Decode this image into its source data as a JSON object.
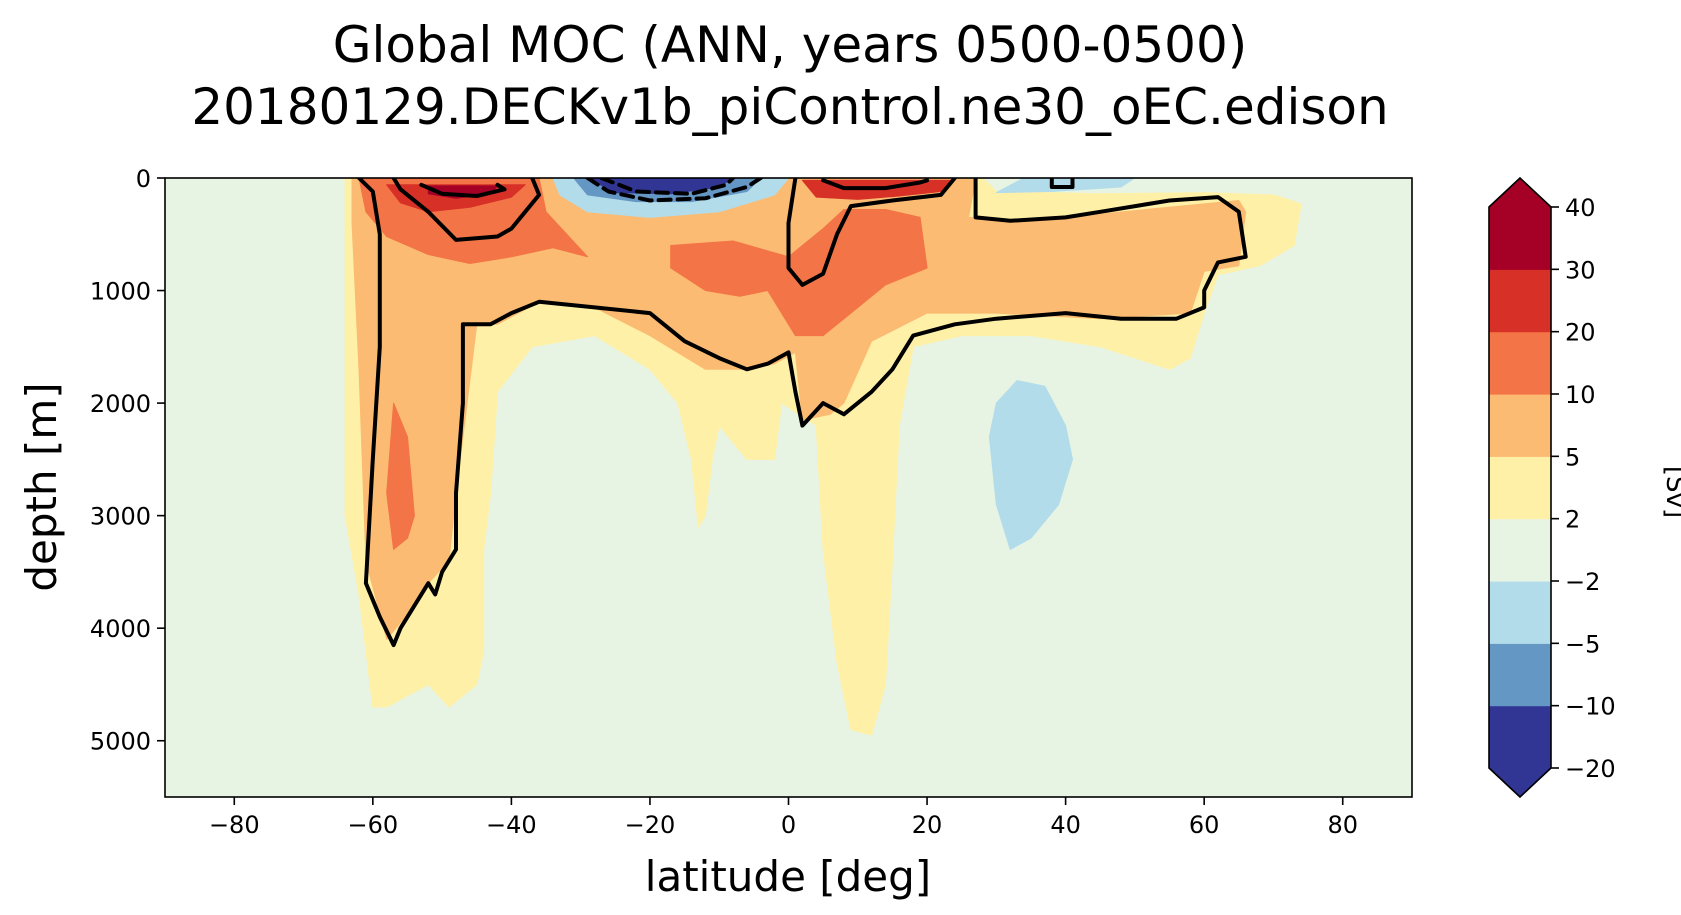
{
  "chart_data": {
    "type": "contour",
    "title_line1": "Global MOC (ANN, years 0500-0500)",
    "title_line2": "20180129.DECKv1b_piControl.ne30_oEC.edison",
    "xlabel": "latitude [deg]",
    "ylabel": "depth [m]",
    "xlim": [
      -90,
      90
    ],
    "ylim": [
      5500,
      0
    ],
    "x_ticks": [
      -80,
      -60,
      -40,
      -20,
      0,
      20,
      40,
      60,
      80
    ],
    "x_tick_labels": [
      "−80",
      "−60",
      "−40",
      "−20",
      "0",
      "20",
      "40",
      "60",
      "80"
    ],
    "y_ticks": [
      0,
      1000,
      2000,
      3000,
      4000,
      5000
    ],
    "y_tick_labels": [
      "0",
      "1000",
      "2000",
      "3000",
      "4000",
      "5000"
    ],
    "colorbar": {
      "label": "[Sv]",
      "levels": [
        -20,
        -10,
        -5,
        -2,
        2,
        5,
        10,
        20,
        30,
        40
      ],
      "level_labels": [
        "−20",
        "−10",
        "−5",
        "−2",
        "2",
        "5",
        "10",
        "20",
        "30",
        "40"
      ],
      "band_colors": [
        "#313695",
        "#6497c4",
        "#b3dcea",
        "#e7f4e4",
        "#fff0a8",
        "#fbbb72",
        "#f37446",
        "#d73027",
        "#a50026"
      ],
      "extend": "both",
      "under_color": "#313695",
      "over_color": "#a50026"
    },
    "background_color": "#e7f4e4",
    "filled_regions": [
      {
        "name": "yellow-2-5",
        "color": "#fff0a8",
        "lat_depth": [
          [
            -64,
            0
          ],
          [
            28,
            0
          ],
          [
            30,
            120
          ],
          [
            45,
            140
          ],
          [
            60,
            130
          ],
          [
            70,
            150
          ],
          [
            74,
            230
          ],
          [
            73,
            600
          ],
          [
            68,
            780
          ],
          [
            62,
            860
          ],
          [
            60,
            1200
          ],
          [
            58,
            1600
          ],
          [
            55,
            1700
          ],
          [
            45,
            1500
          ],
          [
            35,
            1400
          ],
          [
            25,
            1400
          ],
          [
            18,
            1500
          ],
          [
            16,
            2200
          ],
          [
            15,
            3400
          ],
          [
            14,
            4500
          ],
          [
            12,
            4950
          ],
          [
            9,
            4900
          ],
          [
            7,
            4300
          ],
          [
            5,
            3300
          ],
          [
            4,
            2200
          ],
          [
            -1,
            2000
          ],
          [
            -2,
            2500
          ],
          [
            -6,
            2500
          ],
          [
            -10,
            2200
          ],
          [
            -11,
            2500
          ],
          [
            -12,
            3000
          ],
          [
            -13,
            3100
          ],
          [
            -14,
            2500
          ],
          [
            -16,
            2000
          ],
          [
            -20,
            1700
          ],
          [
            -28,
            1400
          ],
          [
            -37,
            1500
          ],
          [
            -42,
            1900
          ],
          [
            -43,
            2800
          ],
          [
            -44,
            3300
          ],
          [
            -44,
            4200
          ],
          [
            -45,
            4500
          ],
          [
            -47,
            4600
          ],
          [
            -49,
            4700
          ],
          [
            -52,
            4500
          ],
          [
            -55,
            4600
          ],
          [
            -58,
            4700
          ],
          [
            -60,
            4700
          ],
          [
            -62,
            3700
          ],
          [
            -64,
            3000
          ],
          [
            -64,
            600
          ]
        ]
      },
      {
        "name": "orange-5-10",
        "color": "#fbbb72",
        "lat_depth": [
          [
            -63,
            0
          ],
          [
            27,
            0
          ],
          [
            26,
            350
          ],
          [
            32,
            380
          ],
          [
            40,
            350
          ],
          [
            50,
            290
          ],
          [
            65,
            200
          ],
          [
            66,
            300
          ],
          [
            65,
            780
          ],
          [
            60,
            830
          ],
          [
            58,
            1200
          ],
          [
            45,
            1250
          ],
          [
            30,
            1200
          ],
          [
            20,
            1200
          ],
          [
            12,
            1450
          ],
          [
            8,
            2000
          ],
          [
            6,
            2100
          ],
          [
            2,
            2150
          ],
          [
            1,
            1550
          ],
          [
            -2,
            1650
          ],
          [
            -6,
            1700
          ],
          [
            -12,
            1700
          ],
          [
            -20,
            1400
          ],
          [
            -28,
            1150
          ],
          [
            -36,
            1100
          ],
          [
            -42,
            1300
          ],
          [
            -45,
            1300
          ],
          [
            -48,
            2800
          ],
          [
            -49,
            3400
          ],
          [
            -52,
            3600
          ],
          [
            -54,
            3800
          ],
          [
            -58,
            4100
          ],
          [
            -61,
            3400
          ],
          [
            -62,
            1700
          ],
          [
            -63,
            400
          ]
        ]
      },
      {
        "name": "red-10-20-south",
        "color": "#f37446",
        "lat_depth": [
          [
            -62,
            0
          ],
          [
            -36,
            0
          ],
          [
            -35,
            300
          ],
          [
            -32,
            500
          ],
          [
            -29,
            700
          ],
          [
            -34,
            620
          ],
          [
            -40,
            700
          ],
          [
            -46,
            760
          ],
          [
            -52,
            680
          ],
          [
            -58,
            520
          ],
          [
            -61,
            300
          ]
        ]
      },
      {
        "name": "red-10-20-center",
        "color": "#f37446",
        "lat_depth": [
          [
            -17,
            600
          ],
          [
            -8,
            560
          ],
          [
            0,
            700
          ],
          [
            5,
            450
          ],
          [
            8,
            280
          ],
          [
            14,
            280
          ],
          [
            19,
            350
          ],
          [
            20,
            800
          ],
          [
            14,
            950
          ],
          [
            9,
            1200
          ],
          [
            5,
            1400
          ],
          [
            1,
            1400
          ],
          [
            -3,
            1000
          ],
          [
            -7,
            1050
          ],
          [
            -12,
            1000
          ],
          [
            -17,
            800
          ]
        ]
      },
      {
        "name": "red-10-20-deep",
        "color": "#f37446",
        "lat_depth": [
          [
            -57,
            2000
          ],
          [
            -55,
            2300
          ],
          [
            -54,
            3000
          ],
          [
            -55,
            3200
          ],
          [
            -57,
            3300
          ],
          [
            -58,
            2800
          ]
        ]
      },
      {
        "name": "darkred-20-30-south",
        "color": "#d73027",
        "lat_depth": [
          [
            -58,
            60
          ],
          [
            -38,
            60
          ],
          [
            -40,
            170
          ],
          [
            -46,
            260
          ],
          [
            -52,
            300
          ],
          [
            -56,
            220
          ]
        ]
      },
      {
        "name": "darkred-20-30-north",
        "color": "#d73027",
        "lat_depth": [
          [
            2,
            20
          ],
          [
            24,
            20
          ],
          [
            22,
            120
          ],
          [
            16,
            160
          ],
          [
            10,
            190
          ],
          [
            4,
            170
          ]
        ]
      },
      {
        "name": "max-30-40-south",
        "color": "#a50026",
        "lat_depth": [
          [
            -52,
            70
          ],
          [
            -42,
            70
          ],
          [
            -43,
            140
          ],
          [
            -48,
            180
          ],
          [
            -52,
            140
          ]
        ]
      },
      {
        "name": "blue-neg2-neg5-center",
        "color": "#b3dcea",
        "lat_depth": [
          [
            -34,
            0
          ],
          [
            0,
            0
          ],
          [
            -2,
            150
          ],
          [
            -10,
            300
          ],
          [
            -20,
            350
          ],
          [
            -29,
            300
          ],
          [
            -33,
            150
          ]
        ]
      },
      {
        "name": "blue-neg5-neg10-center",
        "color": "#6497c4",
        "lat_depth": [
          [
            -31,
            0
          ],
          [
            -4,
            0
          ],
          [
            -6,
            120
          ],
          [
            -14,
            210
          ],
          [
            -22,
            210
          ],
          [
            -29,
            150
          ]
        ]
      },
      {
        "name": "navy-neg10-neg20-center",
        "color": "#313695",
        "lat_depth": [
          [
            -29,
            0
          ],
          [
            -8,
            0
          ],
          [
            -10,
            80
          ],
          [
            -17,
            140
          ],
          [
            -25,
            130
          ]
        ]
      },
      {
        "name": "blue-north-surface",
        "color": "#b3dcea",
        "lat_depth": [
          [
            34,
            0
          ],
          [
            50,
            0
          ],
          [
            48,
            80
          ],
          [
            38,
            120
          ],
          [
            30,
            130
          ]
        ]
      },
      {
        "name": "blue-deep-north",
        "color": "#b3dcea",
        "lat_depth": [
          [
            29,
            2300
          ],
          [
            30,
            2000
          ],
          [
            33,
            1800
          ],
          [
            37,
            1850
          ],
          [
            40,
            2200
          ],
          [
            41,
            2500
          ],
          [
            39,
            2900
          ],
          [
            35,
            3200
          ],
          [
            32,
            3300
          ],
          [
            30,
            2900
          ]
        ]
      }
    ],
    "contour_lines": [
      {
        "name": "contour-5-main",
        "style": "solid",
        "lat_depth": [
          [
            -62,
            0
          ],
          [
            -60,
            120
          ],
          [
            -59,
            500
          ],
          [
            -59,
            1500
          ],
          [
            -60,
            2500
          ],
          [
            -61,
            3600
          ],
          [
            -59,
            3900
          ],
          [
            -57,
            4150
          ],
          [
            -56,
            4000
          ],
          [
            -54,
            3800
          ],
          [
            -52,
            3600
          ],
          [
            -51,
            3700
          ],
          [
            -50,
            3500
          ],
          [
            -48,
            3300
          ],
          [
            -48,
            2800
          ],
          [
            -47,
            2000
          ],
          [
            -47,
            1300
          ],
          [
            -43,
            1300
          ],
          [
            -40,
            1200
          ],
          [
            -36,
            1100
          ],
          [
            -28,
            1150
          ],
          [
            -20,
            1200
          ],
          [
            -15,
            1450
          ],
          [
            -10,
            1600
          ],
          [
            -6,
            1700
          ],
          [
            -3,
            1650
          ],
          [
            0,
            1550
          ],
          [
            1,
            1900
          ],
          [
            2,
            2200
          ],
          [
            5,
            2000
          ],
          [
            8,
            2100
          ],
          [
            12,
            1900
          ],
          [
            15,
            1700
          ],
          [
            18,
            1400
          ],
          [
            24,
            1300
          ],
          [
            30,
            1250
          ],
          [
            40,
            1200
          ],
          [
            48,
            1250
          ],
          [
            56,
            1250
          ],
          [
            60,
            1150
          ],
          [
            60,
            1000
          ],
          [
            62,
            750
          ],
          [
            66,
            700
          ],
          [
            65,
            300
          ],
          [
            62,
            170
          ],
          [
            55,
            200
          ],
          [
            45,
            300
          ],
          [
            40,
            350
          ],
          [
            32,
            380
          ],
          [
            27,
            350
          ],
          [
            27,
            0
          ]
        ]
      },
      {
        "name": "contour-10-south",
        "style": "solid",
        "lat_depth": [
          [
            -57,
            0
          ],
          [
            -56,
            100
          ],
          [
            -52,
            300
          ],
          [
            -48,
            550
          ],
          [
            -42,
            520
          ],
          [
            -40,
            450
          ],
          [
            -38,
            300
          ],
          [
            -36,
            150
          ],
          [
            -37,
            0
          ]
        ]
      },
      {
        "name": "contour-10-center",
        "style": "solid",
        "lat_depth": [
          [
            1,
            0
          ],
          [
            0,
            400
          ],
          [
            0,
            800
          ],
          [
            2,
            950
          ],
          [
            5,
            850
          ],
          [
            7,
            500
          ],
          [
            9,
            250
          ],
          [
            15,
            200
          ],
          [
            22,
            150
          ],
          [
            24,
            0
          ]
        ]
      },
      {
        "name": "contour-20-south",
        "style": "solid",
        "lat_depth": [
          [
            -53,
            60
          ],
          [
            -50,
            140
          ],
          [
            -45,
            160
          ],
          [
            -41,
            100
          ],
          [
            -42,
            60
          ]
        ]
      },
      {
        "name": "contour-20-north",
        "style": "solid",
        "lat_depth": [
          [
            5,
            20
          ],
          [
            8,
            90
          ],
          [
            14,
            90
          ],
          [
            19,
            40
          ],
          [
            20,
            20
          ]
        ]
      },
      {
        "name": "contour-neg5-center",
        "style": "dashed",
        "lat_depth": [
          [
            -29,
            0
          ],
          [
            -26,
            120
          ],
          [
            -20,
            200
          ],
          [
            -12,
            180
          ],
          [
            -6,
            80
          ],
          [
            -4,
            0
          ]
        ]
      },
      {
        "name": "contour-neg10-center",
        "style": "dashed",
        "lat_depth": [
          [
            -27,
            0
          ],
          [
            -22,
            120
          ],
          [
            -14,
            140
          ],
          [
            -9,
            60
          ],
          [
            -8,
            0
          ]
        ]
      },
      {
        "name": "contour-north-small",
        "style": "solid",
        "lat_depth": [
          [
            38,
            0
          ],
          [
            38,
            80
          ],
          [
            41,
            80
          ],
          [
            41,
            0
          ]
        ]
      }
    ]
  }
}
